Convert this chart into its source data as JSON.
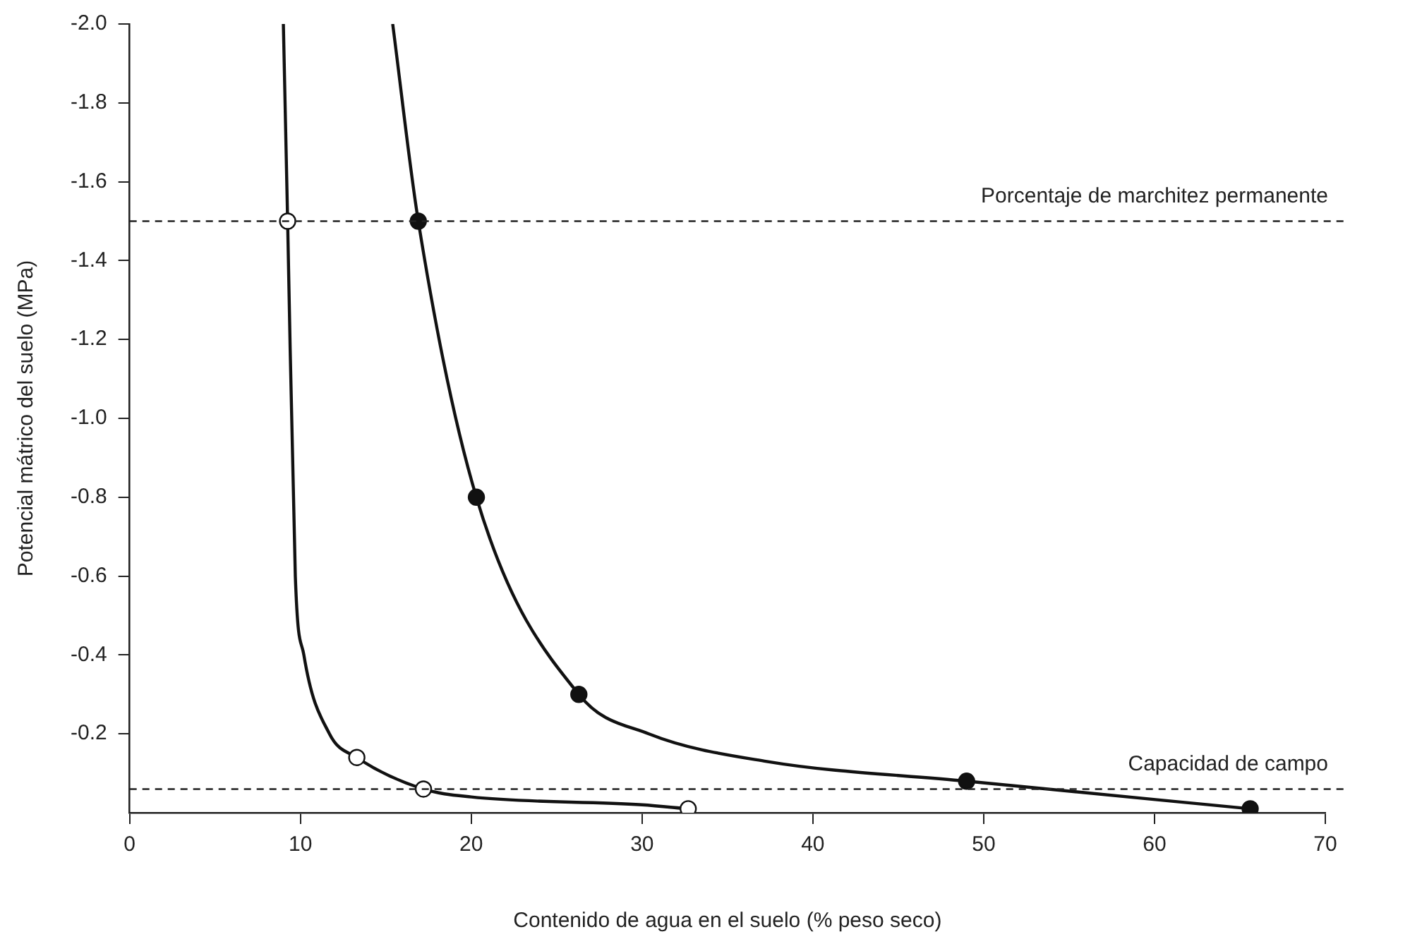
{
  "chart_data": {
    "type": "line",
    "xlabel": "Contenido de agua en el suelo (% peso seco)",
    "ylabel": "Potencial mátrico del suelo (MPa)",
    "xlim": [
      0,
      70
    ],
    "xticks": [
      0,
      10,
      20,
      30,
      40,
      50,
      60,
      70
    ],
    "ylim": [
      0,
      -2.0
    ],
    "yticks": [
      {
        "value": -0.2,
        "label": "-0.2"
      },
      {
        "value": -0.4,
        "label": "-0.4"
      },
      {
        "value": -0.6,
        "label": "-0.6"
      },
      {
        "value": -0.8,
        "label": "-0.8"
      },
      {
        "value": -1.0,
        "label": "-1.0"
      },
      {
        "value": -1.2,
        "label": "-1.2"
      },
      {
        "value": -1.4,
        "label": "-1.4"
      },
      {
        "value": -1.6,
        "label": "-1.6"
      },
      {
        "value": -1.8,
        "label": "-1.8"
      },
      {
        "value": -2.0,
        "label": "-2.0"
      }
    ],
    "grid": false,
    "legend": false,
    "series": [
      {
        "type": "line",
        "marker": "none",
        "color": "#111111",
        "x": [
          9.0,
          9.25,
          9.7,
          10.2,
          11.7,
          13.3,
          17.2,
          20,
          30,
          32.7
        ],
        "values": [
          -2.0,
          -1.5,
          -0.6,
          -0.4,
          -0.2,
          -0.14,
          -0.06,
          -0.04,
          -0.02,
          -0.01
        ]
      },
      {
        "type": "line",
        "marker": "none",
        "color": "#111111",
        "x": [
          15.4,
          16.9,
          20.3,
          26.3,
          30.4,
          37.3,
          49,
          65.6
        ],
        "values": [
          -2.0,
          -1.5,
          -0.8,
          -0.3,
          -0.2,
          -0.13,
          -0.08,
          -0.01
        ]
      },
      {
        "type": "scatter",
        "marker": "circle",
        "color": "#ffffff",
        "x": [
          9.25,
          13.3,
          17.2,
          32.7
        ],
        "values": [
          -1.5,
          -0.14,
          -0.06,
          -0.01
        ]
      },
      {
        "type": "scatter",
        "marker": "circle",
        "color": "#111111",
        "x": [
          16.9,
          20.3,
          26.3,
          49,
          65.6
        ],
        "values": [
          -1.5,
          -0.8,
          -0.3,
          -0.08,
          -0.01
        ]
      }
    ],
    "ref_lines": [
      {
        "axis": "y",
        "value": -1.5,
        "label": "Porcentaje de marchitez permanente",
        "line_style": "dashed"
      },
      {
        "axis": "y",
        "value": -0.06,
        "label": "Capacidad de campo",
        "line_style": "dashed"
      }
    ]
  }
}
